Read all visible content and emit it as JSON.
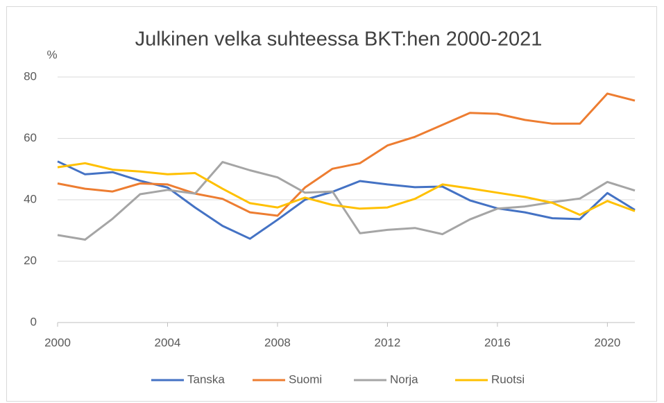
{
  "chart_data": {
    "type": "line",
    "title": "Julkinen velka suhteessa BKT:hen 2000-2021",
    "y_label": "%",
    "x": [
      2000,
      2001,
      2002,
      2003,
      2004,
      2005,
      2006,
      2007,
      2008,
      2009,
      2010,
      2011,
      2012,
      2013,
      2014,
      2015,
      2016,
      2017,
      2018,
      2019,
      2020,
      2021
    ],
    "series": [
      {
        "name": "Tanska",
        "color": "#4472c4",
        "values": [
          52.5,
          48.3,
          49,
          46.2,
          44,
          37.5,
          31.5,
          27.3,
          33.5,
          40,
          42.6,
          46.1,
          45,
          44.1,
          44.3,
          39.8,
          37.2,
          35.9,
          34,
          33.7,
          42.2,
          36.7
        ]
      },
      {
        "name": "Suomi",
        "color": "#ed7d31",
        "values": [
          45.3,
          43.6,
          42.7,
          45.3,
          45,
          42,
          40.3,
          35.9,
          34.8,
          44,
          50.1,
          51.9,
          57.7,
          60.5,
          64.4,
          68.3,
          68,
          66,
          64.8,
          64.8,
          74.6,
          72.3
        ]
      },
      {
        "name": "Norja",
        "color": "#a5a5a5",
        "values": [
          28.5,
          27,
          33.8,
          41.8,
          43.2,
          42,
          52.3,
          49.6,
          47.3,
          42.3,
          42.7,
          29.1,
          30.2,
          30.8,
          28.8,
          33.6,
          37.1,
          37.8,
          39.2,
          40.4,
          45.8,
          43
        ]
      },
      {
        "name": "Ruotsi",
        "color": "#ffc000",
        "values": [
          50.6,
          51.9,
          49.8,
          49.2,
          48.3,
          48.7,
          43.6,
          38.9,
          37.5,
          40.7,
          38.3,
          37.1,
          37.5,
          40.3,
          45,
          43.7,
          42.3,
          40.9,
          39,
          35.1,
          39.6,
          36.3
        ]
      }
    ],
    "xlim": [
      2000,
      2021
    ],
    "xticks": [
      2000,
      2004,
      2008,
      2012,
      2016,
      2020
    ],
    "ylim": [
      0,
      80
    ],
    "yticks": [
      0,
      20,
      40,
      60,
      80
    ],
    "grid": true,
    "legend": "bottom"
  }
}
